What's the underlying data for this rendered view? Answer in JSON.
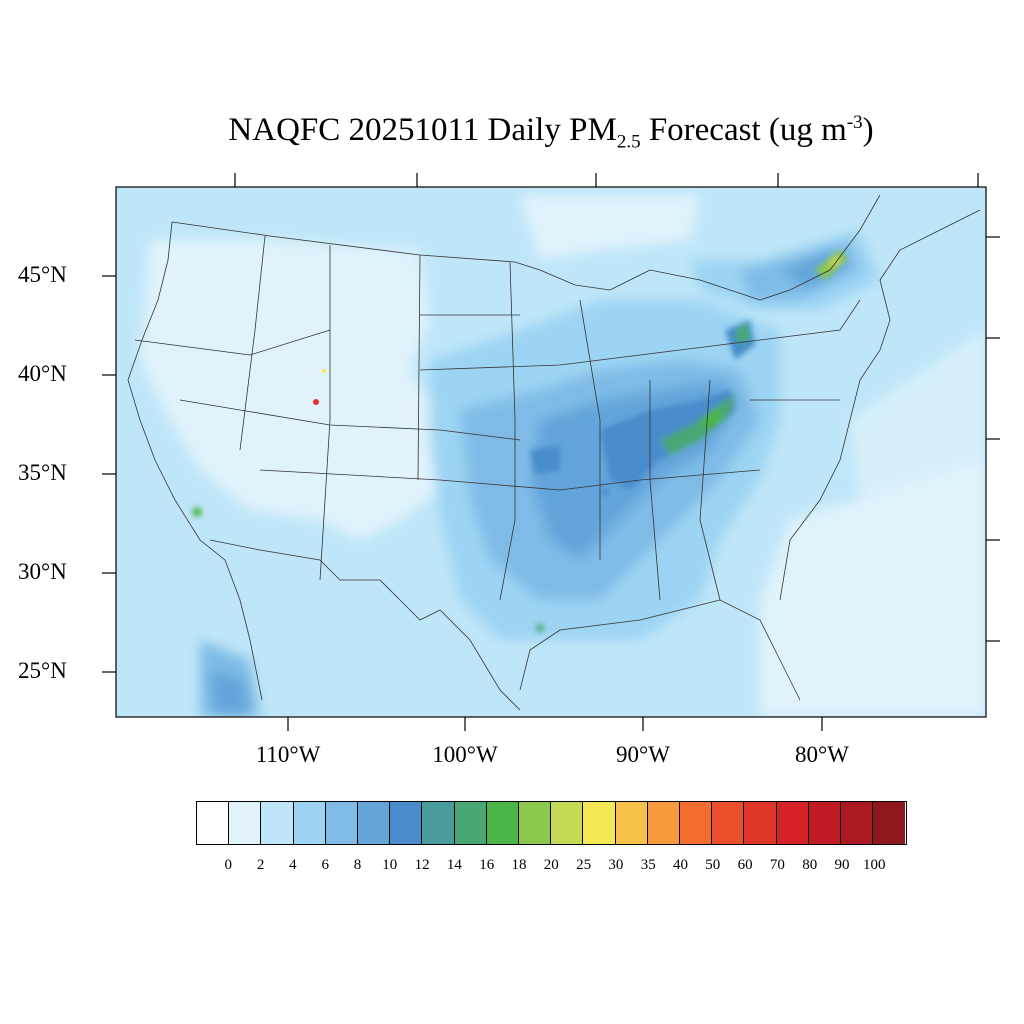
{
  "title": {
    "main": "NAQFC 20251011 Daily PM",
    "sub": "2.5",
    "mid": " Forecast (ug m",
    "sup": "-3",
    "end": ")"
  },
  "lat_labels": [
    "45°N",
    "40°N",
    "35°N",
    "30°N",
    "25°N"
  ],
  "lon_labels": [
    "110°W",
    "100°W",
    "90°W",
    "80°W"
  ],
  "colorbar": {
    "colors": [
      "#ffffff",
      "#e0f3fb",
      "#bfe6f8",
      "#9dd4f3",
      "#7fbbe6",
      "#64a5da",
      "#4a8ccb",
      "#4a9b9b",
      "#48a774",
      "#4bb548",
      "#8cc84b",
      "#c5da55",
      "#f7e855",
      "#f8c14a",
      "#f69a3d",
      "#f36d2e",
      "#ec4f2c",
      "#e0362a",
      "#d42228",
      "#c11c26",
      "#ab1a22",
      "#8e161d"
    ],
    "labels": [
      "0",
      "2",
      "4",
      "6",
      "8",
      "10",
      "12",
      "14",
      "16",
      "18",
      "20",
      "25",
      "30",
      "35",
      "40",
      "50",
      "60",
      "70",
      "80",
      "90",
      "100"
    ]
  }
}
